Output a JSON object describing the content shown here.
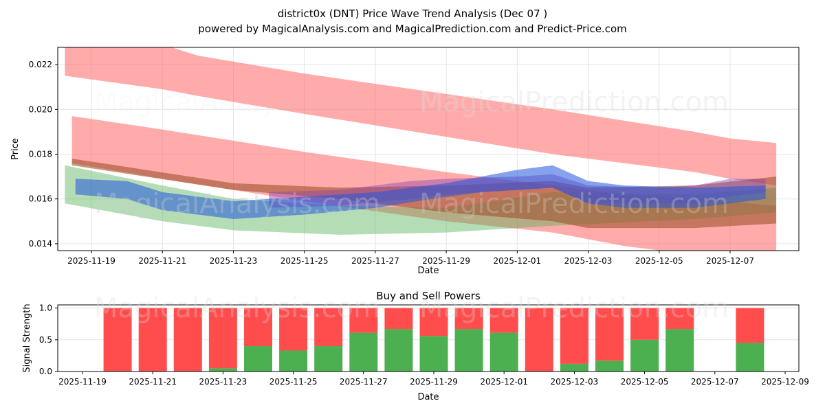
{
  "title": "district0x (DNT) Price Wave Trend Analysis (Dec 07 )",
  "subtitle": "powered by MagicalAnalysis.com and MagicalPrediction.com and Predict-Price.com",
  "watermark1": "MagicalAnalysis.com",
  "watermark2": "MagicalPrediction.com",
  "chart_data": [
    {
      "type": "area",
      "title": "",
      "xlabel": "Date",
      "ylabel": "Price",
      "ylim": [
        0.01369,
        0.02277
      ],
      "x_origin": "2025-11-19",
      "xticks": [
        "2025-11-19",
        "2025-11-21",
        "2025-11-23",
        "2025-11-25",
        "2025-11-27",
        "2025-11-29",
        "2025-12-01",
        "2025-12-03",
        "2025-12-05",
        "2025-12-07"
      ],
      "yticks": [
        "0.014",
        "0.016",
        "0.018",
        "0.020",
        "0.022"
      ],
      "bands": [
        {
          "name": "upper-red",
          "color": "#ff6666",
          "alpha": 0.55,
          "x": [
            -0.75,
            2,
            3,
            6,
            13,
            17,
            18,
            19.3
          ],
          "top": [
            0.023,
            0.0229,
            0.0224,
            0.0216,
            0.02,
            0.019,
            0.0187,
            0.0185
          ],
          "bottom": [
            0.0215,
            0.0209,
            0.0206,
            0.0198,
            0.018,
            0.0172,
            0.0169,
            0.0166
          ]
        },
        {
          "name": "lower-red",
          "color": "#ff6666",
          "alpha": 0.55,
          "x": [
            -0.55,
            2,
            6,
            10,
            13,
            15,
            17,
            19.3
          ],
          "top": [
            0.0197,
            0.0191,
            0.0181,
            0.0172,
            0.0166,
            0.0162,
            0.016,
            0.0157
          ],
          "bottom": [
            0.0176,
            0.0169,
            0.0159,
            0.015,
            0.0145,
            0.0139,
            0.0135,
            0.0131
          ]
        },
        {
          "name": "green",
          "color": "#4caf50",
          "alpha": 0.42,
          "x": [
            -0.75,
            2,
            4,
            7,
            10,
            13,
            17,
            19.3
          ],
          "top": [
            0.0175,
            0.0166,
            0.016,
            0.0157,
            0.0156,
            0.0163,
            0.0162,
            0.0165
          ],
          "bottom": [
            0.0158,
            0.015,
            0.0146,
            0.0144,
            0.0145,
            0.0148,
            0.0151,
            0.0154
          ]
        },
        {
          "name": "brown",
          "color": "#a0522d",
          "alpha": 0.6,
          "x": [
            -0.55,
            4,
            7,
            10,
            13,
            14,
            17,
            19.3
          ],
          "top": [
            0.0178,
            0.0167,
            0.0165,
            0.0166,
            0.0168,
            0.0165,
            0.0166,
            0.017
          ],
          "bottom": [
            0.0175,
            0.0164,
            0.016,
            0.0154,
            0.015,
            0.0147,
            0.0147,
            0.0149
          ]
        },
        {
          "name": "purple",
          "color": "#8e44ad",
          "alpha": 0.45,
          "x": [
            5,
            7,
            9,
            10,
            12,
            13,
            14,
            16,
            17,
            18,
            19
          ],
          "top": [
            0.0163,
            0.0164,
            0.0168,
            0.0169,
            0.017,
            0.0171,
            0.0166,
            0.0165,
            0.0166,
            0.0169,
            0.0169
          ],
          "bottom": [
            0.0156,
            0.0157,
            0.016,
            0.0162,
            0.0164,
            0.0165,
            0.0158,
            0.0158,
            0.0158,
            0.0161,
            0.0163
          ]
        },
        {
          "name": "blue",
          "color": "#2255dd",
          "alpha": 0.55,
          "x": [
            -0.45,
            1,
            2,
            4,
            6,
            8,
            10,
            11,
            12,
            13,
            14,
            15,
            17,
            19
          ],
          "top": [
            0.0169,
            0.0168,
            0.0163,
            0.0159,
            0.0161,
            0.0163,
            0.0167,
            0.017,
            0.0173,
            0.0175,
            0.0168,
            0.0166,
            0.0165,
            0.0166
          ],
          "bottom": [
            0.0162,
            0.016,
            0.0155,
            0.0151,
            0.0153,
            0.0156,
            0.0161,
            0.0163,
            0.0164,
            0.0165,
            0.0158,
            0.0156,
            0.0156,
            0.016
          ]
        }
      ]
    },
    {
      "type": "bar",
      "title": "Buy and Sell Powers",
      "xlabel": "Date",
      "ylabel": "Signal Strength",
      "ylim": [
        0,
        1.05
      ],
      "xticks": [
        "2025-11-19",
        "2025-11-21",
        "2025-11-23",
        "2025-11-25",
        "2025-11-27",
        "2025-11-29",
        "2025-12-01",
        "2025-12-03",
        "2025-12-05",
        "2025-12-07",
        "2025-12-09"
      ],
      "yticks": [
        "0.0",
        "0.5",
        "1.0"
      ],
      "categories": [
        "2025-11-20",
        "2025-11-21",
        "2025-11-22",
        "2025-11-23",
        "2025-11-24",
        "2025-11-25",
        "2025-11-26",
        "2025-11-27",
        "2025-11-28",
        "2025-11-29",
        "2025-11-30",
        "2025-12-01",
        "2025-12-02",
        "2025-12-03",
        "2025-12-04",
        "2025-12-05",
        "2025-12-06",
        "2025-12-08"
      ],
      "day_offsets": [
        1,
        2,
        3,
        4,
        5,
        6,
        7,
        8,
        9,
        10,
        11,
        12,
        13,
        14,
        15,
        16,
        17,
        19
      ],
      "series": [
        {
          "name": "Buy",
          "color": "#4caf50",
          "values": [
            0,
            0,
            0,
            0.05,
            0.4,
            0.33,
            0.4,
            0.61,
            0.67,
            0.56,
            0.67,
            0.61,
            0,
            0.12,
            0.17,
            0.5,
            0.67,
            0.45
          ]
        },
        {
          "name": "Sell",
          "color": "#ff4d4d",
          "values": [
            1,
            1,
            1,
            0.95,
            0.6,
            0.67,
            0.6,
            0.39,
            0.33,
            0.44,
            0.33,
            0.39,
            1,
            0.88,
            0.83,
            0.5,
            0.33,
            0.55
          ]
        }
      ]
    }
  ]
}
